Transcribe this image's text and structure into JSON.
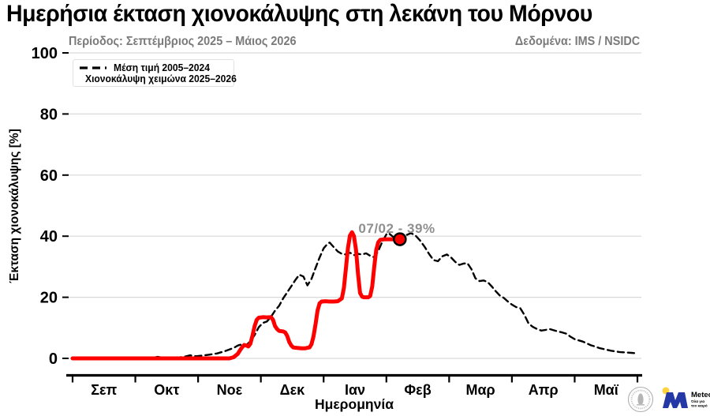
{
  "header": {
    "title": "Ημερήσια έκταση χιονοκάλυψης στη λεκάνη του Μόρνου",
    "period": "Περίοδος: Σεπτέμβριος 2025 – Μάιος 2026",
    "datasource": "Δεδομένα: IMS / NSIDC"
  },
  "legend": {
    "items": [
      {
        "label": "Μέση τιμή 2005–2024",
        "style": "dashed",
        "color": "#000000"
      },
      {
        "label": "Χιονοκάλυψη χειμώνα 2025–2026",
        "style": "solid",
        "color": "#ff0000"
      }
    ]
  },
  "chart_data": {
    "type": "line",
    "title": "Ημερήσια έκταση χιονοκάλυψης στη λεκάνη του Μόρνου",
    "xlabel": "Ημερομηνία",
    "ylabel": "Έκταση χιονοκάλυψης [%]",
    "grid": "horizontal",
    "legend_position": "upper-left",
    "ylim": [
      0,
      100
    ],
    "yticks": [
      0,
      20,
      40,
      60,
      80,
      100
    ],
    "x_unit": "days since Sep 1",
    "xlim_days": [
      0,
      273
    ],
    "x_tick_labels": [
      "Σεπ",
      "Οκτ",
      "Νοε",
      "Δεκ",
      "Ιαν",
      "Φεβ",
      "Μαρ",
      "Απρ",
      "Μαϊ"
    ],
    "month_boundary_days": [
      0,
      30,
      61,
      91,
      122,
      153,
      181,
      212,
      242,
      273
    ],
    "series": [
      {
        "name": "Μέση τιμή 2005–2024",
        "color": "#000000",
        "dash": "8 5",
        "width": 2.4,
        "points": [
          [
            0,
            0
          ],
          [
            15,
            0
          ],
          [
            30,
            0
          ],
          [
            38,
            0.1
          ],
          [
            41,
            0.5
          ],
          [
            44,
            0.2
          ],
          [
            50,
            0.2
          ],
          [
            54,
            0.5
          ],
          [
            57,
            1.0
          ],
          [
            60,
            0.7
          ],
          [
            63,
            0.9
          ],
          [
            66,
            1.2
          ],
          [
            70,
            1.6
          ],
          [
            74,
            2.4
          ],
          [
            78,
            3.4
          ],
          [
            80,
            4.2
          ],
          [
            82,
            4.6
          ],
          [
            84,
            4.3
          ],
          [
            86,
            5.6
          ],
          [
            88,
            7.6
          ],
          [
            90,
            10.2
          ],
          [
            92,
            11.6
          ],
          [
            94,
            12.1
          ],
          [
            96,
            13.6
          ],
          [
            98,
            15.6
          ],
          [
            100,
            17.2
          ],
          [
            102,
            19.6
          ],
          [
            104,
            21.6
          ],
          [
            106,
            23.6
          ],
          [
            108,
            25.6
          ],
          [
            110,
            27.4
          ],
          [
            112,
            26.8
          ],
          [
            114,
            23.9
          ],
          [
            116,
            26.0
          ],
          [
            118,
            29.6
          ],
          [
            120,
            33.0
          ],
          [
            122,
            36.0
          ],
          [
            124,
            37.6
          ],
          [
            125,
            37.9
          ],
          [
            127,
            36.4
          ],
          [
            129,
            35.0
          ],
          [
            131,
            34.2
          ],
          [
            133,
            34.0
          ],
          [
            135,
            34.6
          ],
          [
            137,
            33.8
          ],
          [
            139,
            34.2
          ],
          [
            141,
            34.0
          ],
          [
            143,
            34.4
          ],
          [
            145,
            33.6
          ],
          [
            147,
            33.1
          ],
          [
            149,
            35.2
          ],
          [
            151,
            38.2
          ],
          [
            153,
            40.6
          ],
          [
            154,
            41.0
          ],
          [
            156,
            39.8
          ],
          [
            158,
            38.8
          ],
          [
            160,
            39.4
          ],
          [
            162,
            40.4
          ],
          [
            164,
            41.0
          ],
          [
            166,
            40.2
          ],
          [
            168,
            38.6
          ],
          [
            170,
            36.6
          ],
          [
            172,
            34.2
          ],
          [
            174,
            32.2
          ],
          [
            176,
            31.8
          ],
          [
            178,
            33.4
          ],
          [
            180,
            34.0
          ],
          [
            182,
            33.0
          ],
          [
            184,
            31.6
          ],
          [
            186,
            30.6
          ],
          [
            188,
            31.0
          ],
          [
            190,
            31.2
          ],
          [
            192,
            29.2
          ],
          [
            194,
            26.2
          ],
          [
            196,
            25.3
          ],
          [
            198,
            25.5
          ],
          [
            200,
            25.0
          ],
          [
            202,
            23.6
          ],
          [
            204,
            22.0
          ],
          [
            206,
            20.6
          ],
          [
            208,
            19.8
          ],
          [
            210,
            18.6
          ],
          [
            212,
            17.6
          ],
          [
            214,
            16.8
          ],
          [
            216,
            16.4
          ],
          [
            218,
            14.2
          ],
          [
            220,
            11.4
          ],
          [
            222,
            10.3
          ],
          [
            224,
            9.6
          ],
          [
            226,
            9.1
          ],
          [
            228,
            9.3
          ],
          [
            230,
            9.6
          ],
          [
            232,
            9.2
          ],
          [
            234,
            8.8
          ],
          [
            236,
            8.5
          ],
          [
            238,
            8.1
          ],
          [
            240,
            7.1
          ],
          [
            242,
            6.3
          ],
          [
            244,
            5.9
          ],
          [
            246,
            5.5
          ],
          [
            248,
            4.9
          ],
          [
            250,
            4.3
          ],
          [
            252,
            3.9
          ],
          [
            254,
            3.4
          ],
          [
            256,
            3.1
          ],
          [
            258,
            2.8
          ],
          [
            260,
            2.5
          ],
          [
            262,
            2.3
          ],
          [
            264,
            2.1
          ],
          [
            266,
            2.0
          ],
          [
            268,
            1.9
          ],
          [
            270,
            1.8
          ],
          [
            272,
            1.7
          ]
        ]
      },
      {
        "name": "Χιονοκάλυψη χειμώνα 2025–2026",
        "color": "#ff0000",
        "dash": "",
        "width": 5,
        "points": [
          [
            0,
            0
          ],
          [
            10,
            0
          ],
          [
            20,
            0
          ],
          [
            30,
            0
          ],
          [
            40,
            0
          ],
          [
            50,
            0
          ],
          [
            60,
            0
          ],
          [
            70,
            0
          ],
          [
            76,
            0
          ],
          [
            78,
            0.4
          ],
          [
            80,
            1.5
          ],
          [
            81,
            2.6
          ],
          [
            82,
            3.6
          ],
          [
            83,
            4.4
          ],
          [
            84,
            4.2
          ],
          [
            85,
            3.9
          ],
          [
            86,
            4.8
          ],
          [
            87,
            7.5
          ],
          [
            88,
            10.5
          ],
          [
            89,
            12.6
          ],
          [
            90,
            13.3
          ],
          [
            92,
            13.5
          ],
          [
            94,
            13.4
          ],
          [
            96,
            13.5
          ],
          [
            97,
            12.6
          ],
          [
            98,
            10.6
          ],
          [
            99,
            9.6
          ],
          [
            100,
            9.0
          ],
          [
            102,
            8.8
          ],
          [
            103,
            8.5
          ],
          [
            104,
            7.4
          ],
          [
            105,
            5.4
          ],
          [
            106,
            4.2
          ],
          [
            107,
            3.6
          ],
          [
            109,
            3.4
          ],
          [
            111,
            3.3
          ],
          [
            113,
            3.3
          ],
          [
            115,
            3.6
          ],
          [
            116,
            4.6
          ],
          [
            117,
            7.2
          ],
          [
            118,
            11.2
          ],
          [
            119,
            15.6
          ],
          [
            120,
            18.0
          ],
          [
            121,
            18.6
          ],
          [
            123,
            18.7
          ],
          [
            125,
            18.6
          ],
          [
            127,
            18.6
          ],
          [
            129,
            18.7
          ],
          [
            131,
            19.6
          ],
          [
            132,
            23.0
          ],
          [
            133,
            29.5
          ],
          [
            134,
            36.0
          ],
          [
            135,
            40.2
          ],
          [
            136,
            41.3
          ],
          [
            137,
            40.0
          ],
          [
            138,
            35.5
          ],
          [
            139,
            27.5
          ],
          [
            140,
            21.4
          ],
          [
            141,
            20.2
          ],
          [
            142,
            20.0
          ],
          [
            144,
            20.0
          ],
          [
            145,
            20.4
          ],
          [
            146,
            23.5
          ],
          [
            147,
            30.0
          ],
          [
            148,
            35.5
          ],
          [
            149,
            38.0
          ],
          [
            150,
            38.8
          ],
          [
            152,
            39.0
          ],
          [
            155,
            39.0
          ],
          [
            159,
            39.0
          ]
        ]
      }
    ],
    "annotation": {
      "text": "07/02 - 39%",
      "day": 159,
      "value": 39
    },
    "marker": {
      "day": 159,
      "value": 39,
      "fill": "#ff0000",
      "edge": "#000000"
    }
  },
  "logos": {
    "meteo": {
      "name": "Meteo",
      "tagline_line1": "Όλα για",
      "tagline_line2": "τον καιρό"
    }
  },
  "colors": {
    "red": "#ff0000",
    "gridline": "#d9d9d9",
    "axis": "#000000",
    "subtitle_gray": "#7a7a7a",
    "annotation_gray": "#8f8f8f",
    "meteo_blue": "#2438a6",
    "meteo_yellow": "#ffd23f",
    "seal_gray": "#b0b0b0"
  }
}
